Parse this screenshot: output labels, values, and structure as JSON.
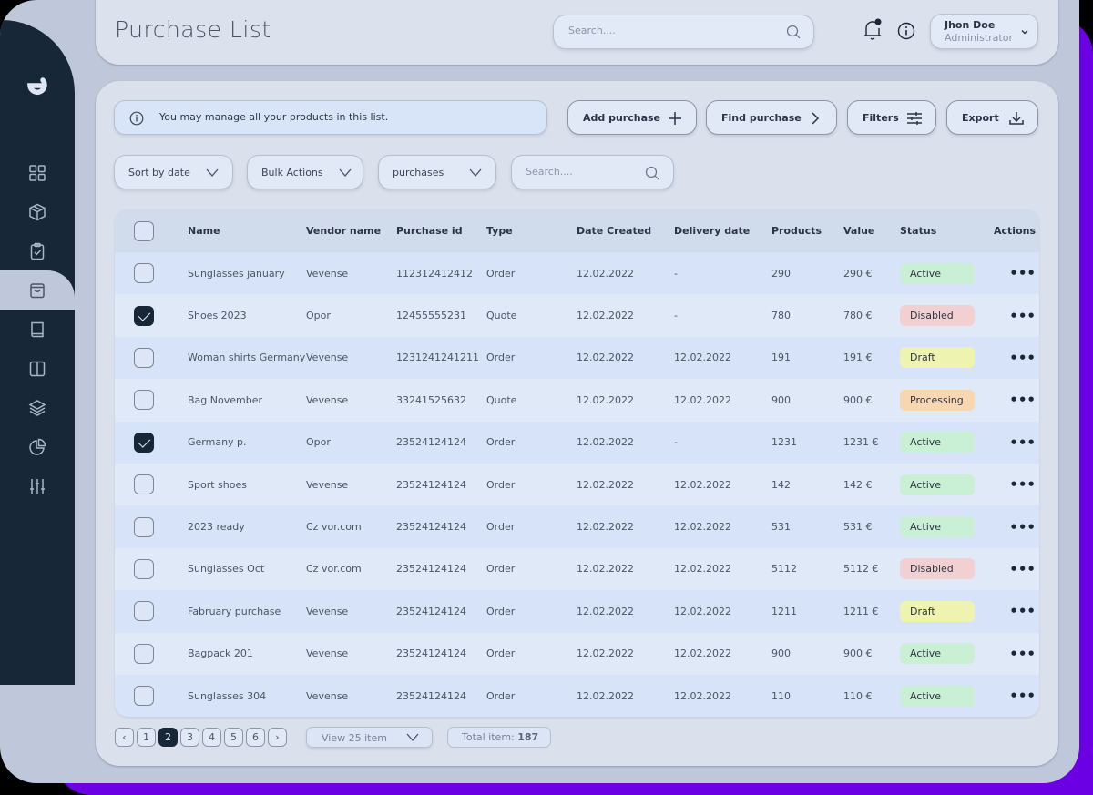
{
  "header": {
    "title": "Purchase List",
    "search_placeholder": "Search....",
    "user": {
      "name": "Jhon Doe",
      "role": "Administrator"
    }
  },
  "sidebar": {
    "logo": "e",
    "items": [
      {
        "icon": "grid-icon",
        "active": false
      },
      {
        "icon": "box-icon",
        "active": false
      },
      {
        "icon": "clipboard-check-icon",
        "active": false
      },
      {
        "icon": "shopping-bag-icon",
        "active": true
      },
      {
        "icon": "book-icon",
        "active": false
      },
      {
        "icon": "columns-icon",
        "active": false
      },
      {
        "icon": "layers-icon",
        "active": false
      },
      {
        "icon": "pie-chart-icon",
        "active": false
      },
      {
        "icon": "sliders-icon",
        "active": false
      }
    ]
  },
  "toolbar": {
    "notice": "You may manage all your products in this list.",
    "add_purchase": "Add purchase",
    "find_purchase": "Find purchase",
    "filters": "Filters",
    "export": "Export",
    "sort_by": "Sort by date",
    "bulk_actions": "Bulk Actions",
    "type_filter": "purchases",
    "search_placeholder": "Search...."
  },
  "table": {
    "columns": [
      "Name",
      "Vendor name",
      "Purchase id",
      "Type",
      "Date Created",
      "Delivery date",
      "Products",
      "Value",
      "Status",
      "Actions"
    ],
    "rows": [
      {
        "checked": false,
        "name": "Sunglasses january",
        "vendor": "Vevense",
        "id": "112312412412",
        "type": "Order",
        "created": "12.02.2022",
        "delivery": "-",
        "products": "290",
        "value": "290 €",
        "status": "Active"
      },
      {
        "checked": true,
        "name": "Shoes 2023",
        "vendor": "Opor",
        "id": "12455555231",
        "type": "Quote",
        "created": "12.02.2022",
        "delivery": "-",
        "products": "780",
        "value": "780 €",
        "status": "Disabled"
      },
      {
        "checked": false,
        "name": "Woman shirts Germany",
        "vendor": "Vevense",
        "id": "1231241241211",
        "type": "Order",
        "created": "12.02.2022",
        "delivery": "12.02.2022",
        "products": "191",
        "value": "191 €",
        "status": "Draft"
      },
      {
        "checked": false,
        "name": "Bag November",
        "vendor": "Vevense",
        "id": "33241525632",
        "type": "Quote",
        "created": "12.02.2022",
        "delivery": "12.02.2022",
        "products": "900",
        "value": "900 €",
        "status": "Processing"
      },
      {
        "checked": true,
        "name": "Germany p.",
        "vendor": "Opor",
        "id": "23524124124",
        "type": "Order",
        "created": "12.02.2022",
        "delivery": "-",
        "products": "1231",
        "value": "1231 €",
        "status": "Active"
      },
      {
        "checked": false,
        "name": "Sport shoes",
        "vendor": "Vevense",
        "id": "23524124124",
        "type": "Order",
        "created": "12.02.2022",
        "delivery": "12.02.2022",
        "products": "142",
        "value": "142 €",
        "status": "Active"
      },
      {
        "checked": false,
        "name": "2023 ready",
        "vendor": "Cz vor.com",
        "id": "23524124124",
        "type": "Order",
        "created": "12.02.2022",
        "delivery": "12.02.2022",
        "products": "531",
        "value": "531 €",
        "status": "Active"
      },
      {
        "checked": false,
        "name": "Sunglasses Oct",
        "vendor": "Cz vor.com",
        "id": "23524124124",
        "type": "Order",
        "created": "12.02.2022",
        "delivery": "12.02.2022",
        "products": "5112",
        "value": "5112 €",
        "status": "Disabled"
      },
      {
        "checked": false,
        "name": "Fabruary purchase",
        "vendor": "Vevense",
        "id": "23524124124",
        "type": "Order",
        "created": "12.02.2022",
        "delivery": "12.02.2022",
        "products": "1211",
        "value": "1211 €",
        "status": "Draft"
      },
      {
        "checked": false,
        "name": "Bagpack 201",
        "vendor": "Vevense",
        "id": "23524124124",
        "type": "Order",
        "created": "12.02.2022",
        "delivery": "12.02.2022",
        "products": "900",
        "value": "900 €",
        "status": "Active"
      },
      {
        "checked": false,
        "name": "Sunglasses 304",
        "vendor": "Vevense",
        "id": "23524124124",
        "type": "Order",
        "created": "12.02.2022",
        "delivery": "12.02.2022",
        "products": "110",
        "value": "110 €",
        "status": "Active"
      }
    ],
    "status_colors": {
      "Active": "#c9efd4",
      "Disabled": "#f2d0d2",
      "Draft": "#eef4b0",
      "Processing": "#f8d6b0"
    },
    "actions_glyph": "•••"
  },
  "pagination": {
    "prev": "‹",
    "next": "›",
    "pages": [
      "1",
      "2",
      "3",
      "4",
      "5",
      "6"
    ],
    "current": "2",
    "per_page": "View 25 item",
    "total_label": "Total item:",
    "total_value": "187"
  },
  "colors": {
    "sidebar": "#172737",
    "accent_purple": "#6c00e4",
    "background": "#bec8da"
  }
}
